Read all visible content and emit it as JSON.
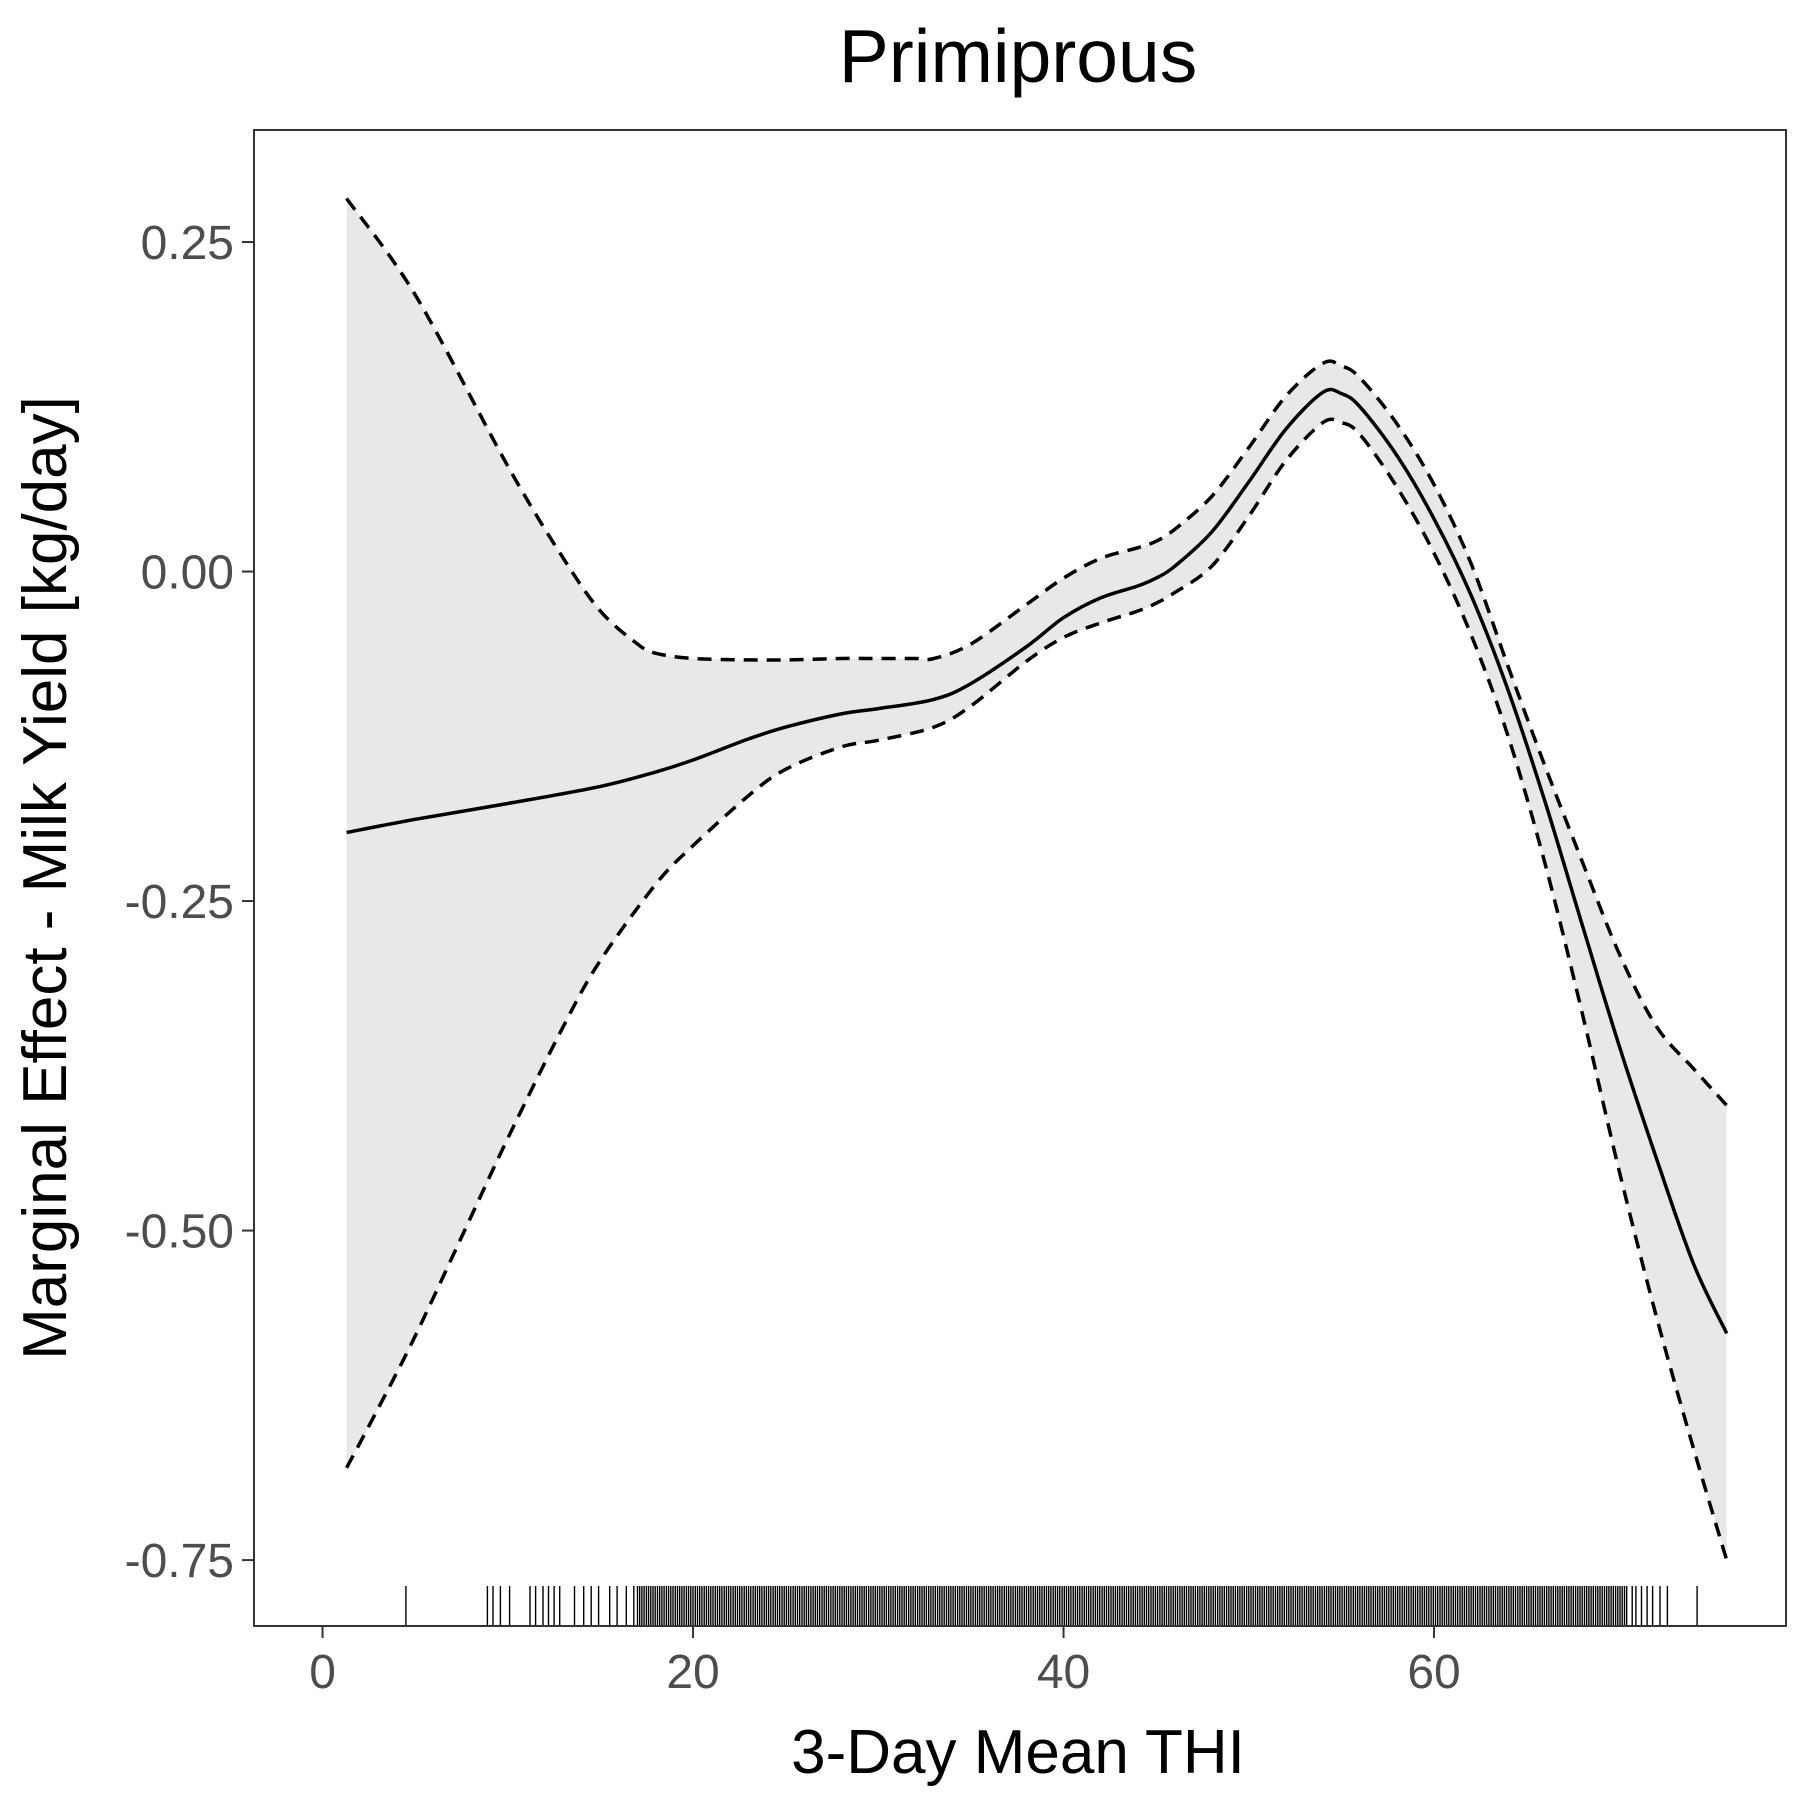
{
  "chart_data": {
    "type": "line",
    "title": "Primiprous",
    "xlabel": "3-Day Mean THI",
    "ylabel": "Marginal Effect - Milk Yield [kg/day]",
    "xlim": [
      -3.7,
      79
    ],
    "ylim": [
      -0.8,
      0.335
    ],
    "x_ticks": [
      0,
      20,
      40,
      60
    ],
    "x_tick_labels": [
      "0",
      "20",
      "40",
      "60"
    ],
    "y_ticks": [
      0.25,
      0.0,
      -0.25,
      -0.5,
      -0.75
    ],
    "y_tick_labels": [
      "0.25",
      "0.00",
      "-0.25",
      "-0.50",
      "-0.75"
    ],
    "grid": false,
    "legend": "none",
    "series": [
      {
        "role": "estimate",
        "style": "solid",
        "x": [
          1.3,
          5,
          10,
          15,
          18,
          20,
          23,
          25,
          28,
          30,
          33,
          35,
          38,
          40,
          42,
          44,
          45,
          46,
          48,
          50,
          52,
          54,
          55,
          56,
          58,
          60,
          62,
          64,
          66,
          68,
          70,
          72,
          74,
          75.8
        ],
        "y": [
          -0.198,
          -0.188,
          -0.176,
          -0.163,
          -0.152,
          -0.143,
          -0.127,
          -0.118,
          -0.108,
          -0.104,
          -0.097,
          -0.085,
          -0.057,
          -0.035,
          -0.02,
          -0.011,
          -0.005,
          0.004,
          0.03,
          0.068,
          0.108,
          0.136,
          0.135,
          0.125,
          0.088,
          0.04,
          -0.018,
          -0.09,
          -0.175,
          -0.268,
          -0.36,
          -0.445,
          -0.525,
          -0.578
        ]
      },
      {
        "role": "upper bound",
        "style": "dashed",
        "x": [
          1.3,
          5,
          10,
          13,
          15,
          17,
          18,
          20,
          23,
          25,
          28,
          30,
          32,
          33,
          35,
          38,
          40,
          42,
          44,
          45,
          46,
          48,
          50,
          52,
          54,
          55,
          56,
          58,
          60,
          62,
          64,
          66,
          68,
          70,
          72,
          74,
          75.8
        ],
        "y": [
          0.283,
          0.21,
          0.08,
          0.01,
          -0.03,
          -0.055,
          -0.062,
          -0.066,
          -0.067,
          -0.067,
          -0.066,
          -0.066,
          -0.066,
          -0.066,
          -0.055,
          -0.025,
          -0.005,
          0.01,
          0.018,
          0.023,
          0.032,
          0.057,
          0.094,
          0.133,
          0.158,
          0.156,
          0.147,
          0.112,
          0.066,
          0.006,
          -0.072,
          -0.148,
          -0.22,
          -0.29,
          -0.345,
          -0.377,
          -0.405
        ]
      },
      {
        "role": "lower bound",
        "style": "dashed",
        "x": [
          1.3,
          3,
          5,
          8,
          10,
          13,
          15,
          18,
          20,
          23,
          25,
          28,
          30,
          33,
          35,
          38,
          40,
          42,
          44,
          45,
          46,
          48,
          50,
          52,
          54,
          55,
          56,
          58,
          60,
          62,
          64,
          66,
          68,
          70,
          72,
          74,
          75.8
        ],
        "y": [
          -0.68,
          -0.635,
          -0.58,
          -0.49,
          -0.43,
          -0.345,
          -0.295,
          -0.237,
          -0.208,
          -0.17,
          -0.15,
          -0.133,
          -0.128,
          -0.118,
          -0.102,
          -0.068,
          -0.05,
          -0.039,
          -0.03,
          -0.024,
          -0.016,
          0.004,
          0.042,
          0.084,
          0.113,
          0.113,
          0.104,
          0.064,
          0.014,
          -0.048,
          -0.125,
          -0.222,
          -0.335,
          -0.455,
          -0.565,
          -0.665,
          -0.75
        ]
      }
    ],
    "rug": {
      "position": "bottom",
      "single": [
        4.5,
        8.9,
        9.2,
        9.6,
        10.1,
        11.2,
        11.5,
        11.9,
        12.2,
        12.5,
        12.8,
        13.6,
        14.1,
        14.5,
        14.9,
        15.5,
        15.9,
        16.4,
        16.8
      ],
      "dense_start": 17.0,
      "dense_end": 70.5,
      "dense_step": 0.12,
      "tail": [
        70.7,
        70.9,
        71.2,
        71.5,
        71.8,
        72.2,
        72.6,
        74.2
      ]
    },
    "colors": {
      "band_fill": "#e8e8e8",
      "line": "#000000",
      "panel_border": "#333333",
      "tick_label": "#4d4d4d"
    }
  }
}
